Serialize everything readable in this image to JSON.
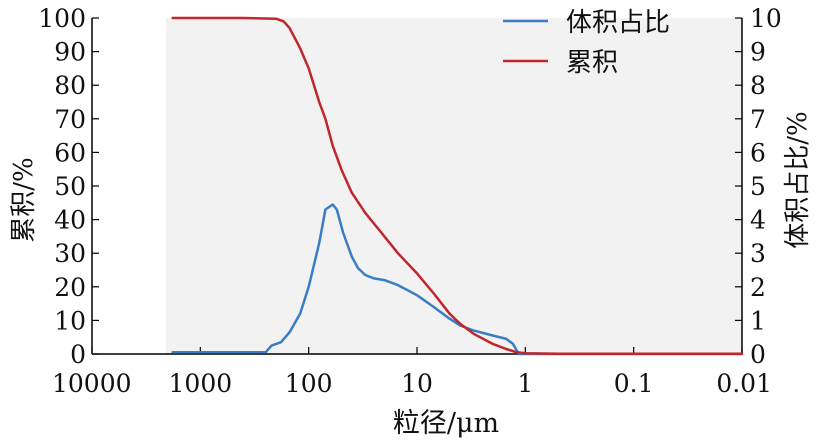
{
  "chart_data": {
    "type": "line",
    "title": "",
    "xlabel": "粒径/μm",
    "ylabel_left": "累积/%",
    "ylabel_right": "体积占比/%",
    "x_scale": "log",
    "x_reversed": true,
    "xlim": [
      10000,
      0.01
    ],
    "ylim_left": [
      0,
      100
    ],
    "ylim_right": [
      0,
      10
    ],
    "x_ticks": [
      {
        "value": 10000,
        "label": "10000"
      },
      {
        "value": 1000,
        "label": "1000"
      },
      {
        "value": 100,
        "label": "100"
      },
      {
        "value": 10,
        "label": "10"
      },
      {
        "value": 1,
        "label": "1"
      },
      {
        "value": 0.1,
        "label": "0.1"
      },
      {
        "value": 0.01,
        "label": "0.01"
      }
    ],
    "y_left_ticks": [
      "0",
      "10",
      "20",
      "30",
      "40",
      "50",
      "60",
      "70",
      "80",
      "90",
      "100"
    ],
    "y_right_ticks": [
      "0",
      "1",
      "2",
      "3",
      "4",
      "5",
      "6",
      "7",
      "8",
      "9",
      "10"
    ],
    "legend_position": "top-right",
    "plot_background": "#f2f2f2",
    "series": [
      {
        "name": "体积占比",
        "axis": "right",
        "color": "#3b7dc4",
        "points": [
          [
            1800,
            0.05
          ],
          [
            1000,
            0.05
          ],
          [
            500,
            0.05
          ],
          [
            250,
            0.05
          ],
          [
            220,
            0.25
          ],
          [
            180,
            0.35
          ],
          [
            150,
            0.65
          ],
          [
            120,
            1.2
          ],
          [
            100,
            2.0
          ],
          [
            80,
            3.3
          ],
          [
            70,
            4.3
          ],
          [
            60,
            4.45
          ],
          [
            55,
            4.3
          ],
          [
            48,
            3.6
          ],
          [
            40,
            2.9
          ],
          [
            35,
            2.55
          ],
          [
            30,
            2.35
          ],
          [
            25,
            2.25
          ],
          [
            20,
            2.2
          ],
          [
            15,
            2.05
          ],
          [
            10,
            1.75
          ],
          [
            7,
            1.4
          ],
          [
            5,
            1.05
          ],
          [
            4,
            0.85
          ],
          [
            3,
            0.7
          ],
          [
            2,
            0.55
          ],
          [
            1.5,
            0.45
          ],
          [
            1.3,
            0.3
          ],
          [
            1.2,
            0.1
          ],
          [
            1.15,
            0.0
          ],
          [
            0.01,
            0.0
          ]
        ]
      },
      {
        "name": "累积",
        "axis": "left",
        "color": "#c0262d",
        "points": [
          [
            1800,
            100
          ],
          [
            1000,
            100
          ],
          [
            400,
            100
          ],
          [
            200,
            99.8
          ],
          [
            170,
            99
          ],
          [
            150,
            97
          ],
          [
            120,
            91
          ],
          [
            100,
            85
          ],
          [
            80,
            75
          ],
          [
            70,
            70
          ],
          [
            60,
            62
          ],
          [
            50,
            55
          ],
          [
            40,
            48
          ],
          [
            30,
            42
          ],
          [
            20,
            35
          ],
          [
            15,
            30
          ],
          [
            10,
            24
          ],
          [
            7,
            18
          ],
          [
            5,
            12
          ],
          [
            4,
            9
          ],
          [
            3,
            6
          ],
          [
            2,
            3
          ],
          [
            1.5,
            1.5
          ],
          [
            1.2,
            0.5
          ],
          [
            1.0,
            0.2
          ],
          [
            0.5,
            0.1
          ],
          [
            0.1,
            0.1
          ],
          [
            0.01,
            0.1
          ]
        ]
      }
    ]
  }
}
